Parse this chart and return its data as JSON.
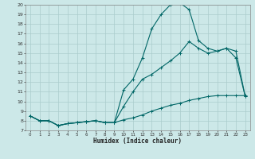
{
  "xlabel": "Humidex (Indice chaleur)",
  "ylabel": "",
  "bg_color": "#cce8e8",
  "line_color": "#006666",
  "grid_color": "#aacccc",
  "xlim": [
    -0.5,
    23.5
  ],
  "ylim": [
    7,
    20
  ],
  "yticks": [
    7,
    8,
    9,
    10,
    11,
    12,
    13,
    14,
    15,
    16,
    17,
    18,
    19,
    20
  ],
  "xticks": [
    0,
    1,
    2,
    3,
    4,
    5,
    6,
    7,
    8,
    9,
    10,
    11,
    12,
    13,
    14,
    15,
    16,
    17,
    18,
    19,
    20,
    21,
    22,
    23
  ],
  "curve1_x": [
    0,
    1,
    2,
    3,
    4,
    5,
    6,
    7,
    8,
    9,
    10,
    11,
    12,
    13,
    14,
    15,
    16,
    17,
    18,
    19,
    20,
    21,
    22,
    23
  ],
  "curve1_y": [
    8.5,
    8.0,
    8.0,
    7.5,
    7.7,
    7.8,
    7.9,
    8.0,
    7.8,
    7.8,
    11.2,
    12.3,
    14.5,
    17.5,
    19.0,
    20.0,
    20.2,
    19.5,
    16.3,
    15.5,
    15.2,
    15.5,
    14.5,
    10.5
  ],
  "curve2_x": [
    0,
    1,
    2,
    3,
    4,
    5,
    6,
    7,
    8,
    9,
    10,
    11,
    12,
    13,
    14,
    15,
    16,
    17,
    18,
    19,
    20,
    21,
    22,
    23
  ],
  "curve2_y": [
    8.5,
    8.0,
    8.0,
    7.5,
    7.7,
    7.8,
    7.9,
    8.0,
    7.8,
    7.8,
    9.5,
    11.0,
    12.3,
    12.8,
    13.5,
    14.2,
    15.0,
    16.2,
    15.5,
    15.0,
    15.2,
    15.5,
    15.2,
    10.5
  ],
  "curve3_x": [
    0,
    1,
    2,
    3,
    4,
    5,
    6,
    7,
    8,
    9,
    10,
    11,
    12,
    13,
    14,
    15,
    16,
    17,
    18,
    19,
    20,
    21,
    22,
    23
  ],
  "curve3_y": [
    8.5,
    8.0,
    8.0,
    7.5,
    7.7,
    7.8,
    7.9,
    8.0,
    7.8,
    7.8,
    8.1,
    8.3,
    8.6,
    9.0,
    9.3,
    9.6,
    9.8,
    10.1,
    10.3,
    10.5,
    10.6,
    10.6,
    10.6,
    10.6
  ]
}
